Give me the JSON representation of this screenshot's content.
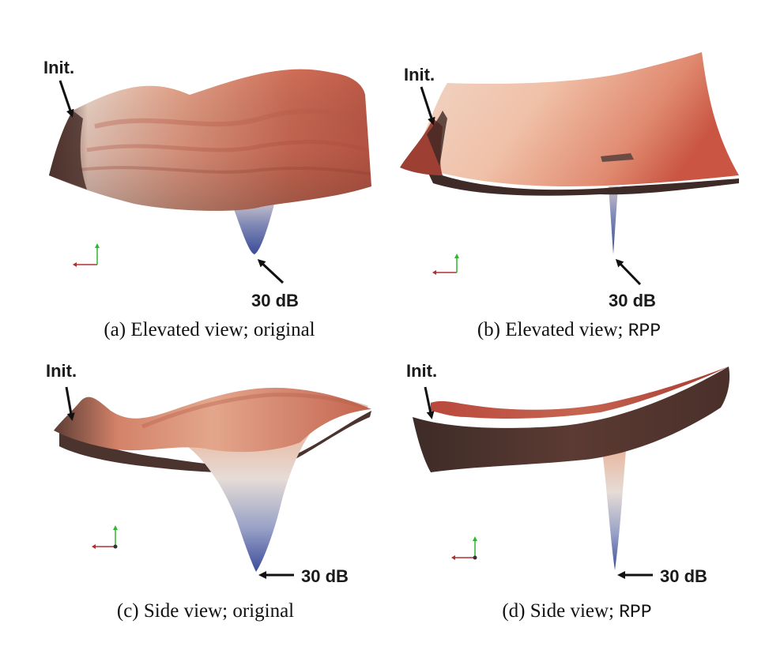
{
  "colors": {
    "surface_light": "#f2ded2",
    "surface_mid": "#d9826a",
    "surface_dark_red": "#b8463a",
    "surface_shadow": "#4a3430",
    "well_blue": "#3d4f9a",
    "arrow": "#111111",
    "axis_x": "#b03030",
    "axis_y": "#2fb82f"
  },
  "panels": [
    {
      "id": "a",
      "init_label": "Init.",
      "depth_label": "30 dB",
      "caption_prefix": "(a) Elevated view; ",
      "caption_method": "original"
    },
    {
      "id": "b",
      "init_label": "Init.",
      "depth_label": "30 dB",
      "caption_prefix": "(b) Elevated view; ",
      "caption_method": "RPP"
    },
    {
      "id": "c",
      "init_label": "Init.",
      "depth_label": "30 dB",
      "caption_prefix": "(c) Side view; ",
      "caption_method": "original"
    },
    {
      "id": "d",
      "init_label": "Init.",
      "depth_label": "30 dB",
      "caption_prefix": "(d) Side view; ",
      "caption_method": "RPP"
    }
  ]
}
